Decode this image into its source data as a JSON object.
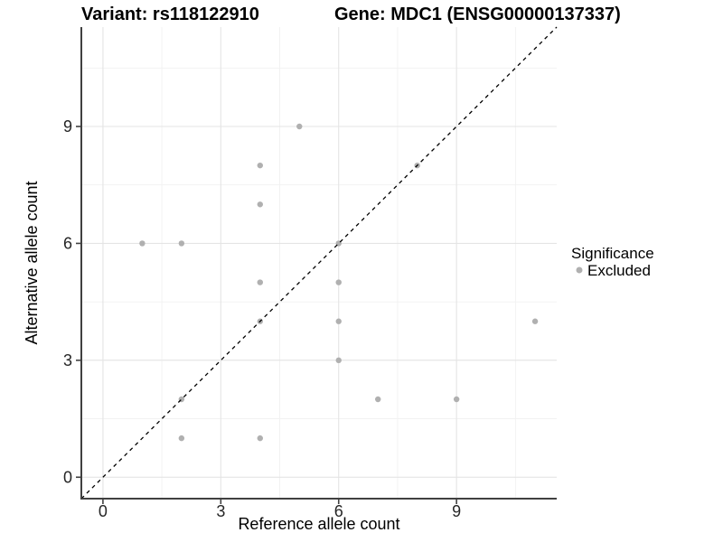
{
  "chart_data": {
    "type": "scatter",
    "titles": {
      "left": "Variant: rs118122910",
      "right": "Gene: MDC1 (ENSG00000137337)"
    },
    "xlabel": "Reference allele count",
    "ylabel": "Alternative allele count",
    "xlim": [
      -0.55,
      11.55
    ],
    "ylim": [
      -0.55,
      11.55
    ],
    "x_major_ticks": [
      0,
      3,
      6,
      9
    ],
    "y_major_ticks": [
      0,
      3,
      6,
      9
    ],
    "x_minor_gridlines": [
      1.5,
      4.5,
      7.5,
      10.5
    ],
    "y_minor_gridlines": [
      1.5,
      4.5,
      7.5,
      10.5
    ],
    "grid": "on",
    "identity_line": {
      "equation": "y = x",
      "style": "dashed",
      "color": "#000000"
    },
    "series": [
      {
        "name": "Excluded",
        "color": "#b0b0b0",
        "points": [
          [
            1,
            6
          ],
          [
            2,
            1
          ],
          [
            2,
            2
          ],
          [
            2,
            6
          ],
          [
            4,
            1
          ],
          [
            4,
            4
          ],
          [
            4,
            5
          ],
          [
            4,
            7
          ],
          [
            4,
            8
          ],
          [
            5,
            9
          ],
          [
            6,
            3
          ],
          [
            6,
            4
          ],
          [
            6,
            5
          ],
          [
            6,
            6
          ],
          [
            7,
            2
          ],
          [
            8,
            8
          ],
          [
            9,
            2
          ],
          [
            11,
            4
          ]
        ]
      }
    ],
    "legend": {
      "title": "Significance",
      "position": "right",
      "entries": [
        {
          "label": "Excluded",
          "color": "#b0b0b0"
        }
      ]
    }
  },
  "colors": {
    "background": "#ffffff",
    "grid_major": "#e4e4e4",
    "grid_minor": "#f1f1f1",
    "axis_line": "#404040",
    "tick_text": "#262626",
    "title_text": "#000000",
    "point": "#b0b0b0",
    "identity_line": "#000000"
  }
}
